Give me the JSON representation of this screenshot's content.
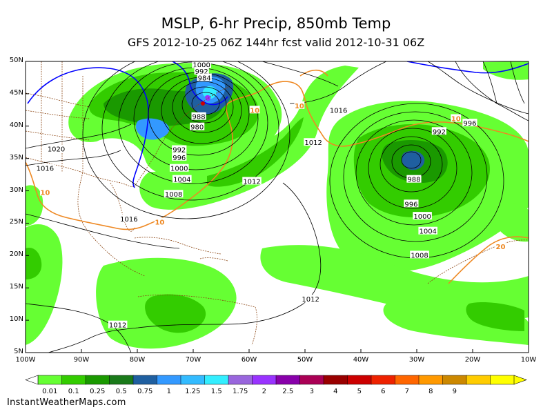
{
  "title": "MSLP, 6-hr Precip, 850mb Temp",
  "subtitle": "GFS 2012-10-25 06Z 144hr fcst valid 2012-10-31 06Z",
  "footer": "InstantWeatherMaps.com",
  "map_extent": {
    "lon": [
      -100,
      -10
    ],
    "lat": [
      5,
      50
    ]
  },
  "lat_labels": [
    "50N",
    "45N",
    "40N",
    "35N",
    "30N",
    "25N",
    "20N",
    "15N",
    "10N",
    "5N"
  ],
  "lat_values": [
    50,
    45,
    40,
    35,
    30,
    25,
    20,
    15,
    10,
    5
  ],
  "lon_labels": [
    "100W",
    "90W",
    "80W",
    "70W",
    "60W",
    "50W",
    "40W",
    "30W",
    "20W",
    "10W"
  ],
  "lon_values": [
    -100,
    -90,
    -80,
    -70,
    -60,
    -50,
    -40,
    -30,
    -20,
    -10
  ],
  "colorbar": {
    "labels": [
      "0.01",
      "0.1",
      "0.25",
      "0.5",
      "0.75",
      "1",
      "1.25",
      "1.5",
      "1.75",
      "2",
      "2.5",
      "3",
      "4",
      "5",
      "6",
      "7",
      "8",
      "9"
    ],
    "colors": [
      "#66ff33",
      "#33cc00",
      "#1a9900",
      "#1a7a1a",
      "#1f5fa0",
      "#3399ff",
      "#33bbff",
      "#33eeff",
      "#9966dd",
      "#9933ff",
      "#8800aa",
      "#aa0055",
      "#990000",
      "#cc0000",
      "#ee2200",
      "#ff6600",
      "#ff9900",
      "#cc8800",
      "#ffcc00",
      "#ffff00"
    ]
  },
  "colors": {
    "isobar": "#000000",
    "temp10": "#ee8822",
    "temp0": "#0000ff",
    "border": "#8b4513"
  },
  "isobar_labels": [
    {
      "text": "1016",
      "lon": -44,
      "lat": 42.5
    },
    {
      "text": "1012",
      "lon": -48.5,
      "lat": 37.5
    },
    {
      "text": "1012",
      "lon": -59.5,
      "lat": 31.5
    },
    {
      "text": "1012",
      "lon": -49,
      "lat": 13.3
    },
    {
      "text": "1012",
      "lon": -83.5,
      "lat": 9.3
    },
    {
      "text": "1016",
      "lon": -81.5,
      "lat": 25.7
    },
    {
      "text": "1016",
      "lon": -96.5,
      "lat": 33.5
    },
    {
      "text": "1020",
      "lon": -94.5,
      "lat": 36.5
    },
    {
      "text": "1008",
      "lon": -73.5,
      "lat": 29.5
    },
    {
      "text": "1004",
      "lon": -72,
      "lat": 31.8
    },
    {
      "text": "1000",
      "lon": -72.5,
      "lat": 33.5
    },
    {
      "text": "996",
      "lon": -72.5,
      "lat": 35.2
    },
    {
      "text": "992",
      "lon": -72.5,
      "lat": 36.4
    },
    {
      "text": "980",
      "lon": -69.3,
      "lat": 39.9
    },
    {
      "text": "988",
      "lon": -69,
      "lat": 41.5
    },
    {
      "text": "1000",
      "lon": -68.5,
      "lat": 49.5
    },
    {
      "text": "992",
      "lon": -68.5,
      "lat": 48.5
    },
    {
      "text": "984",
      "lon": -68,
      "lat": 47.5
    },
    {
      "text": "992",
      "lon": -26,
      "lat": 39.2
    },
    {
      "text": "996",
      "lon": -20.5,
      "lat": 40.5
    },
    {
      "text": "988",
      "lon": -30.5,
      "lat": 31.8
    },
    {
      "text": "996",
      "lon": -31,
      "lat": 28.0
    },
    {
      "text": "1000",
      "lon": -29,
      "lat": 26.1
    },
    {
      "text": "1004",
      "lon": -28,
      "lat": 23.8
    },
    {
      "text": "1008",
      "lon": -29.5,
      "lat": 20.1
    }
  ],
  "temp_labels": [
    {
      "text": "10",
      "lon": -59,
      "lat": 42.5
    },
    {
      "text": "10",
      "lon": -51,
      "lat": 43.2
    },
    {
      "text": "10",
      "lon": -23,
      "lat": 41.2
    },
    {
      "text": "10",
      "lon": -96.5,
      "lat": 29.8
    },
    {
      "text": "10",
      "lon": -76,
      "lat": 25.2
    },
    {
      "text": "20",
      "lon": -15,
      "lat": 21.4
    }
  ]
}
